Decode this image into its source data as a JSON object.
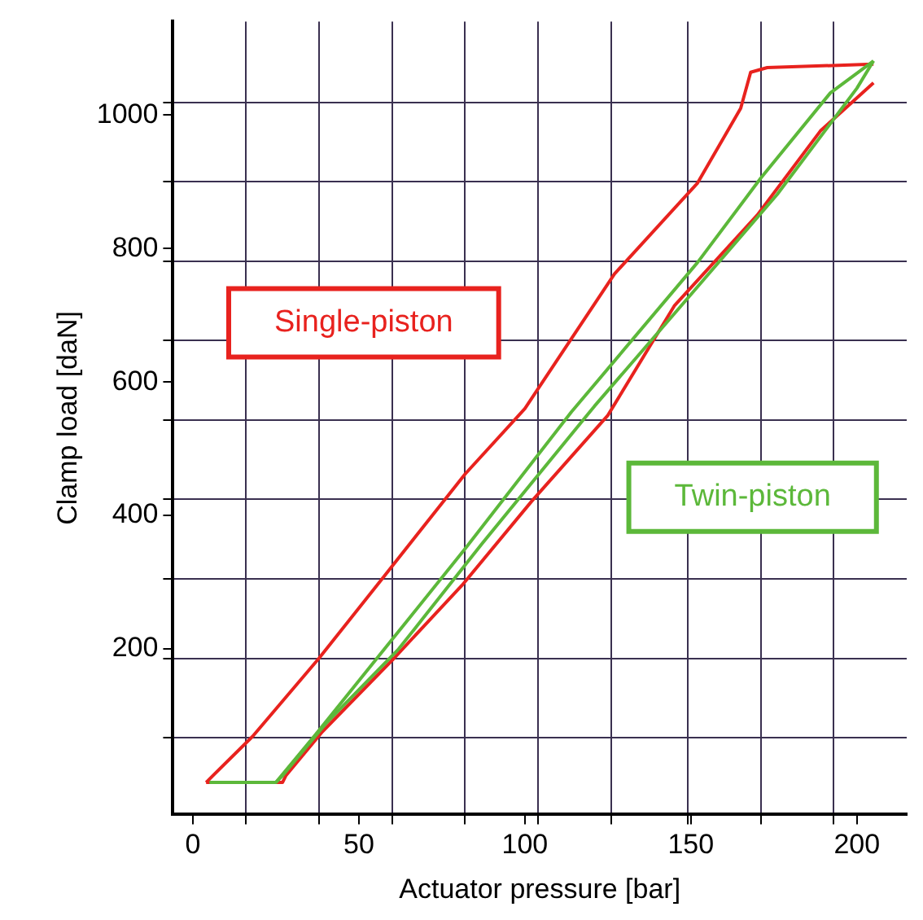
{
  "chart_data": {
    "type": "line",
    "xlabel": "Actuator pressure [bar]",
    "ylabel": "Clamp load [daN]",
    "xlim": [
      -6,
      215
    ],
    "ylim": [
      -48,
      1140
    ],
    "xticks": [
      0,
      50,
      100,
      150,
      200,
      {
        "value": 16,
        "label": null
      },
      {
        "value": 38,
        "label": null
      },
      {
        "value": 60,
        "label": null
      },
      {
        "value": 82,
        "label": null
      },
      {
        "value": 104,
        "label": null
      },
      {
        "value": 126,
        "label": null
      },
      {
        "value": 149,
        "label": null
      },
      {
        "value": 171,
        "label": null
      },
      {
        "value": 193,
        "label": null
      }
    ],
    "yticks": [
      200,
      400,
      600,
      800,
      1000,
      {
        "value": 67,
        "label": null
      },
      {
        "value": 186,
        "label": null
      },
      {
        "value": 305,
        "label": null
      },
      {
        "value": 424,
        "label": null
      },
      {
        "value": 543,
        "label": null
      },
      {
        "value": 662,
        "label": null
      },
      {
        "value": 781,
        "label": null
      },
      {
        "value": 900,
        "label": null
      },
      {
        "value": 1019,
        "label": null
      }
    ],
    "grid": true,
    "legend": false,
    "marker": "none",
    "line_style": "solid",
    "series": [
      {
        "name": "Single-piston",
        "color": "#e8221e",
        "x": [
          4,
          6,
          18,
          38,
          57,
          82,
          100,
          127,
          152,
          165,
          168,
          173,
          205
        ],
        "values": [
          0,
          10,
          69,
          186,
          305,
          462,
          560,
          762,
          898,
          1010,
          1064,
          1071,
          1076
        ]
      },
      {
        "color": "#e8221e",
        "x": [
          4,
          27,
          28,
          39,
          60,
          81,
          102,
          125,
          145,
          170,
          189,
          205
        ],
        "values": [
          0,
          0,
          10,
          76,
          183,
          295,
          421,
          550,
          714,
          850,
          976,
          1048
        ]
      },
      {
        "name": "Twin-piston",
        "color": "#5cb83a",
        "x": [
          5,
          25,
          37,
          60,
          82,
          114,
          152,
          171,
          192,
          205
        ],
        "values": [
          0,
          0,
          72,
          214,
          350,
          555,
          779,
          905,
          1033,
          1081
        ]
      },
      {
        "color": "#5cb83a",
        "x": [
          25,
          27,
          40,
          62,
          87,
          121,
          150,
          176,
          200,
          205
        ],
        "values": [
          0,
          10,
          88,
          200,
          357,
          564,
          731,
          881,
          1040,
          1081
        ]
      }
    ]
  }
}
